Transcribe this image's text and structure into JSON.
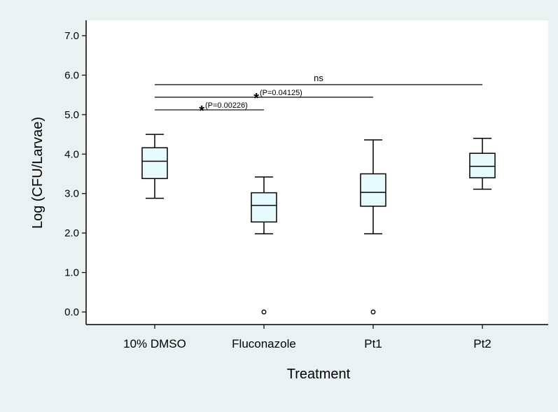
{
  "chart_data": {
    "type": "box",
    "xlabel": "Treatment",
    "ylabel": "Log (CFU/Larvae)",
    "ylim": [
      0,
      7.0
    ],
    "yticks": [
      "0.0",
      "1.0",
      "2.0",
      "3.0",
      "4.0",
      "5.0",
      "6.0",
      "7.0"
    ],
    "categories": [
      "10% DMSO",
      "Fluconazole",
      "Pt1",
      "Pt2"
    ],
    "boxes": [
      {
        "category": "10% DMSO",
        "whisker_low": 2.88,
        "q1": 3.38,
        "median": 3.82,
        "q3": 4.16,
        "whisker_high": 4.5,
        "outliers": []
      },
      {
        "category": "Fluconazole",
        "whisker_low": 1.98,
        "q1": 2.28,
        "median": 2.7,
        "q3": 3.02,
        "whisker_high": 3.42,
        "outliers": [
          0.0
        ]
      },
      {
        "category": "Pt1",
        "whisker_low": 1.98,
        "q1": 2.68,
        "median": 3.03,
        "q3": 3.5,
        "whisker_high": 4.36,
        "outliers": [
          0.0
        ]
      },
      {
        "category": "Pt2",
        "whisker_low": 3.11,
        "q1": 3.4,
        "median": 3.69,
        "q3": 4.02,
        "whisker_high": 4.4,
        "outliers": []
      }
    ],
    "comparisons": [
      {
        "from": "10% DMSO",
        "to": "Fluconazole",
        "y": 5.12,
        "star": "*",
        "label": "(P=0.00226)"
      },
      {
        "from": "10% DMSO",
        "to": "Pt1",
        "y": 5.44,
        "star": "*",
        "label": "(P=0.04125)"
      },
      {
        "from": "10% DMSO",
        "to": "Pt2",
        "y": 5.76,
        "star": "",
        "label": "ns"
      }
    ],
    "box_fill": "#e6fbfd",
    "background": "#e9f1f1",
    "plot_background": "#ffffff",
    "grid": false
  }
}
